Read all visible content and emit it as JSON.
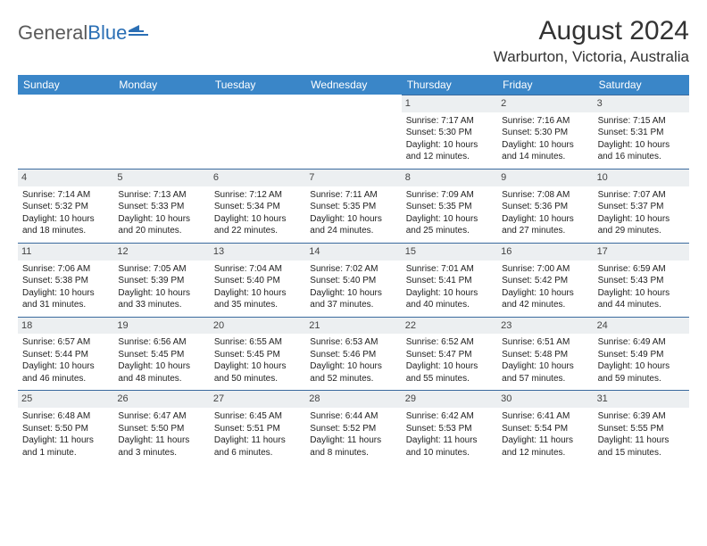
{
  "brand": {
    "name1": "General",
    "name2": "Blue"
  },
  "title": "August 2024",
  "location": "Warburton, Victoria, Australia",
  "colors": {
    "header_bg": "#3a86c8",
    "header_text": "#ffffff",
    "daynum_bg": "#eceff1",
    "daynum_border": "#3a6a9e",
    "body_text": "#222222",
    "brand_gray": "#5a5a5a",
    "brand_blue": "#2b6fb5",
    "background": "#ffffff"
  },
  "typography": {
    "title_fontsize": 30,
    "location_fontsize": 17,
    "dayheader_fontsize": 12,
    "cell_fontsize": 10,
    "font_family": "Arial"
  },
  "day_labels": [
    "Sunday",
    "Monday",
    "Tuesday",
    "Wednesday",
    "Thursday",
    "Friday",
    "Saturday"
  ],
  "weeks": [
    [
      {
        "n": "",
        "sr": "",
        "ss": "",
        "dl": ""
      },
      {
        "n": "",
        "sr": "",
        "ss": "",
        "dl": ""
      },
      {
        "n": "",
        "sr": "",
        "ss": "",
        "dl": ""
      },
      {
        "n": "",
        "sr": "",
        "ss": "",
        "dl": ""
      },
      {
        "n": "1",
        "sr": "Sunrise: 7:17 AM",
        "ss": "Sunset: 5:30 PM",
        "dl": "Daylight: 10 hours and 12 minutes."
      },
      {
        "n": "2",
        "sr": "Sunrise: 7:16 AM",
        "ss": "Sunset: 5:30 PM",
        "dl": "Daylight: 10 hours and 14 minutes."
      },
      {
        "n": "3",
        "sr": "Sunrise: 7:15 AM",
        "ss": "Sunset: 5:31 PM",
        "dl": "Daylight: 10 hours and 16 minutes."
      }
    ],
    [
      {
        "n": "4",
        "sr": "Sunrise: 7:14 AM",
        "ss": "Sunset: 5:32 PM",
        "dl": "Daylight: 10 hours and 18 minutes."
      },
      {
        "n": "5",
        "sr": "Sunrise: 7:13 AM",
        "ss": "Sunset: 5:33 PM",
        "dl": "Daylight: 10 hours and 20 minutes."
      },
      {
        "n": "6",
        "sr": "Sunrise: 7:12 AM",
        "ss": "Sunset: 5:34 PM",
        "dl": "Daylight: 10 hours and 22 minutes."
      },
      {
        "n": "7",
        "sr": "Sunrise: 7:11 AM",
        "ss": "Sunset: 5:35 PM",
        "dl": "Daylight: 10 hours and 24 minutes."
      },
      {
        "n": "8",
        "sr": "Sunrise: 7:09 AM",
        "ss": "Sunset: 5:35 PM",
        "dl": "Daylight: 10 hours and 25 minutes."
      },
      {
        "n": "9",
        "sr": "Sunrise: 7:08 AM",
        "ss": "Sunset: 5:36 PM",
        "dl": "Daylight: 10 hours and 27 minutes."
      },
      {
        "n": "10",
        "sr": "Sunrise: 7:07 AM",
        "ss": "Sunset: 5:37 PM",
        "dl": "Daylight: 10 hours and 29 minutes."
      }
    ],
    [
      {
        "n": "11",
        "sr": "Sunrise: 7:06 AM",
        "ss": "Sunset: 5:38 PM",
        "dl": "Daylight: 10 hours and 31 minutes."
      },
      {
        "n": "12",
        "sr": "Sunrise: 7:05 AM",
        "ss": "Sunset: 5:39 PM",
        "dl": "Daylight: 10 hours and 33 minutes."
      },
      {
        "n": "13",
        "sr": "Sunrise: 7:04 AM",
        "ss": "Sunset: 5:40 PM",
        "dl": "Daylight: 10 hours and 35 minutes."
      },
      {
        "n": "14",
        "sr": "Sunrise: 7:02 AM",
        "ss": "Sunset: 5:40 PM",
        "dl": "Daylight: 10 hours and 37 minutes."
      },
      {
        "n": "15",
        "sr": "Sunrise: 7:01 AM",
        "ss": "Sunset: 5:41 PM",
        "dl": "Daylight: 10 hours and 40 minutes."
      },
      {
        "n": "16",
        "sr": "Sunrise: 7:00 AM",
        "ss": "Sunset: 5:42 PM",
        "dl": "Daylight: 10 hours and 42 minutes."
      },
      {
        "n": "17",
        "sr": "Sunrise: 6:59 AM",
        "ss": "Sunset: 5:43 PM",
        "dl": "Daylight: 10 hours and 44 minutes."
      }
    ],
    [
      {
        "n": "18",
        "sr": "Sunrise: 6:57 AM",
        "ss": "Sunset: 5:44 PM",
        "dl": "Daylight: 10 hours and 46 minutes."
      },
      {
        "n": "19",
        "sr": "Sunrise: 6:56 AM",
        "ss": "Sunset: 5:45 PM",
        "dl": "Daylight: 10 hours and 48 minutes."
      },
      {
        "n": "20",
        "sr": "Sunrise: 6:55 AM",
        "ss": "Sunset: 5:45 PM",
        "dl": "Daylight: 10 hours and 50 minutes."
      },
      {
        "n": "21",
        "sr": "Sunrise: 6:53 AM",
        "ss": "Sunset: 5:46 PM",
        "dl": "Daylight: 10 hours and 52 minutes."
      },
      {
        "n": "22",
        "sr": "Sunrise: 6:52 AM",
        "ss": "Sunset: 5:47 PM",
        "dl": "Daylight: 10 hours and 55 minutes."
      },
      {
        "n": "23",
        "sr": "Sunrise: 6:51 AM",
        "ss": "Sunset: 5:48 PM",
        "dl": "Daylight: 10 hours and 57 minutes."
      },
      {
        "n": "24",
        "sr": "Sunrise: 6:49 AM",
        "ss": "Sunset: 5:49 PM",
        "dl": "Daylight: 10 hours and 59 minutes."
      }
    ],
    [
      {
        "n": "25",
        "sr": "Sunrise: 6:48 AM",
        "ss": "Sunset: 5:50 PM",
        "dl": "Daylight: 11 hours and 1 minute."
      },
      {
        "n": "26",
        "sr": "Sunrise: 6:47 AM",
        "ss": "Sunset: 5:50 PM",
        "dl": "Daylight: 11 hours and 3 minutes."
      },
      {
        "n": "27",
        "sr": "Sunrise: 6:45 AM",
        "ss": "Sunset: 5:51 PM",
        "dl": "Daylight: 11 hours and 6 minutes."
      },
      {
        "n": "28",
        "sr": "Sunrise: 6:44 AM",
        "ss": "Sunset: 5:52 PM",
        "dl": "Daylight: 11 hours and 8 minutes."
      },
      {
        "n": "29",
        "sr": "Sunrise: 6:42 AM",
        "ss": "Sunset: 5:53 PM",
        "dl": "Daylight: 11 hours and 10 minutes."
      },
      {
        "n": "30",
        "sr": "Sunrise: 6:41 AM",
        "ss": "Sunset: 5:54 PM",
        "dl": "Daylight: 11 hours and 12 minutes."
      },
      {
        "n": "31",
        "sr": "Sunrise: 6:39 AM",
        "ss": "Sunset: 5:55 PM",
        "dl": "Daylight: 11 hours and 15 minutes."
      }
    ]
  ]
}
